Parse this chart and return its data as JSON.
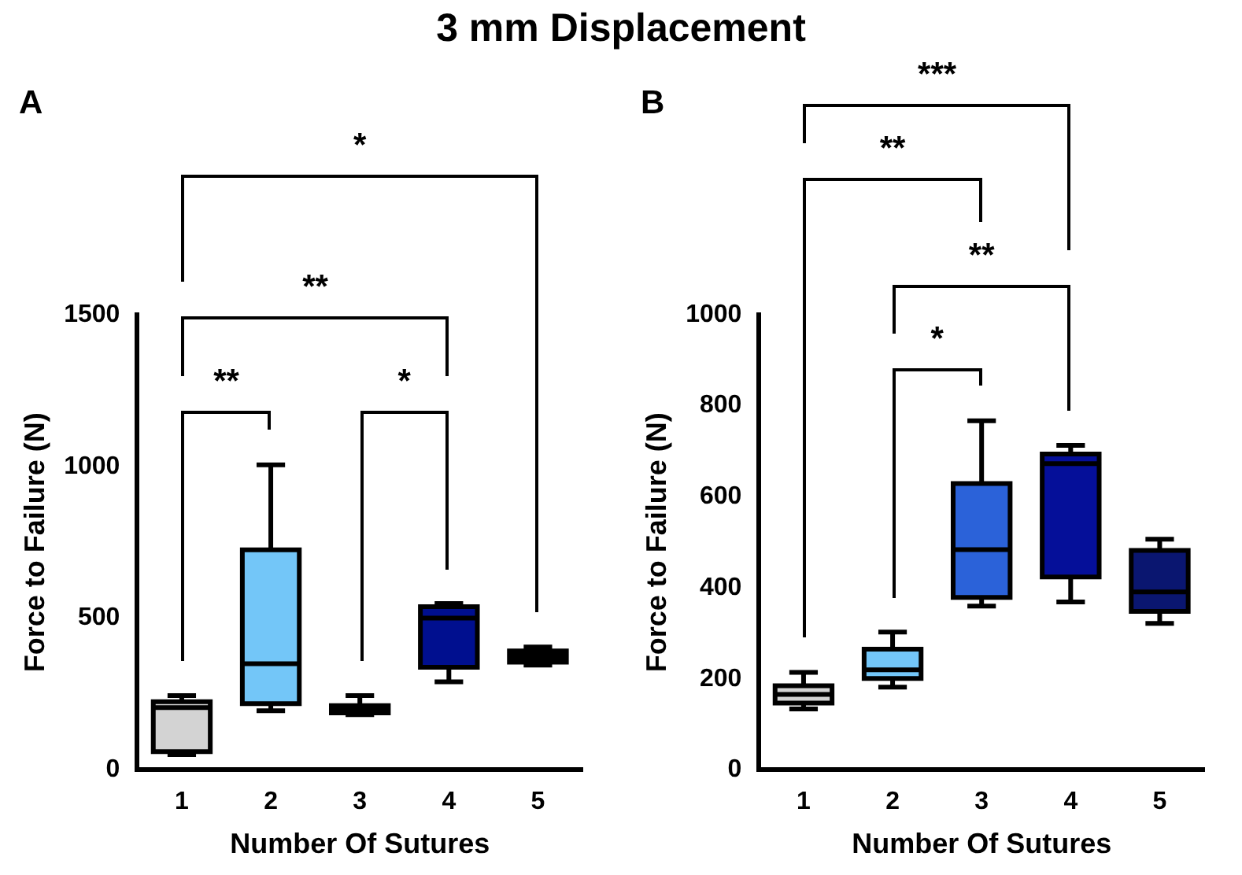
{
  "chart_data": [
    {
      "type": "box",
      "title": "3 mm Displacement",
      "xlabel": "Number Of Sutures",
      "ylabel": "Force to Failure (N)",
      "categories": [
        "1",
        "2",
        "3",
        "4",
        "5"
      ],
      "colors": [
        "#d3d3d3",
        "#73c6f8",
        "#d3d3d3",
        "#000f8f",
        "#000000"
      ],
      "boxes": [
        {
          "low": 50,
          "q1": 60,
          "median": 205,
          "q3": 225,
          "high": 245
        },
        {
          "low": 195,
          "q1": 218,
          "median": 350,
          "q3": 725,
          "high": 1005
        },
        {
          "low": 182,
          "q1": 188,
          "median": 200,
          "q3": 212,
          "high": 245
        },
        {
          "low": 290,
          "q1": 338,
          "median": 500,
          "q3": 538,
          "high": 548
        },
        {
          "low": 345,
          "q1": 355,
          "median": 375,
          "q3": 392,
          "high": 405
        }
      ],
      "ylim": [
        0,
        1500
      ],
      "yticks": [
        0,
        500,
        1000,
        1500
      ],
      "annotations": [
        "A",
        "*",
        "**",
        "**",
        "*"
      ]
    },
    {
      "type": "box",
      "xlabel": "Number Of Sutures",
      "ylabel": "Force to Failure (N)",
      "categories": [
        "1",
        "2",
        "3",
        "4",
        "5"
      ],
      "colors": [
        "#d3d3d3",
        "#73c6f8",
        "#2b62d9",
        "#050f99",
        "#0a1670"
      ],
      "boxes": [
        {
          "low": 134,
          "q1": 147,
          "median": 166,
          "q3": 185,
          "high": 214
        },
        {
          "low": 182,
          "q1": 201,
          "median": 220,
          "q3": 265,
          "high": 303
        },
        {
          "low": 360,
          "q1": 379,
          "median": 484,
          "q3": 629,
          "high": 767
        },
        {
          "low": 369,
          "q1": 424,
          "median": 673,
          "q3": 694,
          "high": 713
        },
        {
          "low": 322,
          "q1": 348,
          "median": 391,
          "q3": 482,
          "high": 507
        }
      ],
      "ylim": [
        0,
        1000
      ],
      "yticks": [
        0,
        200,
        400,
        600,
        800,
        1000
      ],
      "annotations": [
        "B",
        "***",
        "**",
        "**",
        "*"
      ]
    }
  ]
}
